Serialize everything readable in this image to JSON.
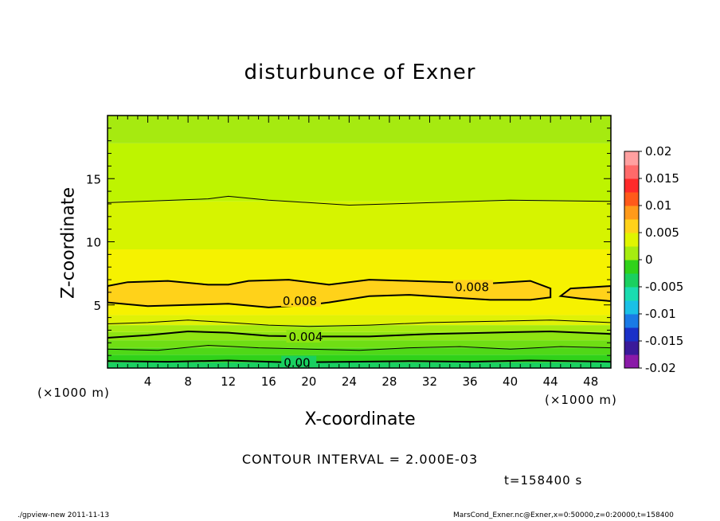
{
  "chart_data": {
    "type": "contour",
    "title": "disturbunce of Exner",
    "xlabel": "X-coordinate",
    "ylabel": "Z-coordinate",
    "x_unit_label": "(×1000 m)",
    "y_unit_label": "(×1000 m)",
    "xlim": [
      0,
      50
    ],
    "ylim": [
      0,
      20
    ],
    "x_ticks": [
      4,
      8,
      12,
      16,
      20,
      24,
      28,
      32,
      36,
      40,
      44,
      48
    ],
    "y_ticks": [
      5,
      10,
      15
    ],
    "contour_interval_text": "CONTOUR INTERVAL = 2.000E-03",
    "time_text": "t=158400 s",
    "colorbar": {
      "ticks": [
        "0.02",
        "0.015",
        "0.01",
        "0.005",
        "0",
        "-0.005",
        "-0.01",
        "-0.015",
        "-0.02"
      ],
      "range": [
        -0.02,
        0.02
      ],
      "colors": [
        "#8a1aa8",
        "#3a1a9a",
        "#1a30c8",
        "#1a7ae6",
        "#1ac0e6",
        "#1adcb0",
        "#1ad060",
        "#30d21a",
        "#a6ec10",
        "#e0f500",
        "#ffd21a",
        "#ff9a1a",
        "#ff5a1a",
        "#ff2a2a",
        "#ff6a6a",
        "#ffa0a0"
      ]
    },
    "bands": [
      {
        "z0": 0.0,
        "z1": 0.45,
        "value": 0.0005,
        "color": "#1ad060"
      },
      {
        "z0": 0.45,
        "z1": 1.05,
        "value": 0.0015,
        "color": "#30d21a"
      },
      {
        "z0": 1.05,
        "z1": 1.6,
        "value": 0.0025,
        "color": "#4fd817"
      },
      {
        "z0": 1.6,
        "z1": 2.2,
        "value": 0.0035,
        "color": "#6fde14"
      },
      {
        "z0": 2.2,
        "z1": 2.85,
        "value": 0.0045,
        "color": "#8fe412"
      },
      {
        "z0": 2.85,
        "z1": 3.4,
        "value": 0.0055,
        "color": "#a6ea10"
      },
      {
        "z0": 3.4,
        "z1": 4.2,
        "value": 0.0065,
        "color": "#e0f206"
      },
      {
        "z0": 4.2,
        "z1": 9.4,
        "value": 0.0075,
        "color": "#f6f200"
      },
      {
        "z0": 9.4,
        "z1": 13.2,
        "value": 0.0065,
        "color": "#d6f400"
      },
      {
        "z0": 13.2,
        "z1": 17.8,
        "value": 0.0055,
        "color": "#bef400"
      },
      {
        "z0": 17.8,
        "z1": 20.0,
        "value": 0.005,
        "color": "#a6ea10"
      }
    ],
    "contours": [
      {
        "level": "0.00",
        "label": "0.00",
        "points": [
          [
            0,
            0.55
          ],
          [
            6,
            0.5
          ],
          [
            12,
            0.6
          ],
          [
            18,
            0.45
          ],
          [
            24,
            0.5
          ],
          [
            30,
            0.55
          ],
          [
            36,
            0.5
          ],
          [
            42,
            0.6
          ],
          [
            50,
            0.5
          ]
        ],
        "bold": true,
        "label_x": 17.5
      },
      {
        "level": "0.004",
        "label": "0.004",
        "points": [
          [
            0,
            2.4
          ],
          [
            4,
            2.6
          ],
          [
            8,
            2.9
          ],
          [
            12,
            2.8
          ],
          [
            16,
            2.55
          ],
          [
            20,
            2.5
          ],
          [
            26,
            2.5
          ],
          [
            32,
            2.7
          ],
          [
            38,
            2.8
          ],
          [
            44,
            2.9
          ],
          [
            50,
            2.7
          ]
        ],
        "bold": true,
        "label_x": 18
      },
      {
        "level": "0.002",
        "label": "",
        "points": [
          [
            0,
            1.5
          ],
          [
            5,
            1.4
          ],
          [
            10,
            1.8
          ],
          [
            15,
            1.6
          ],
          [
            20,
            1.5
          ],
          [
            25,
            1.4
          ],
          [
            30,
            1.6
          ],
          [
            35,
            1.7
          ],
          [
            40,
            1.5
          ],
          [
            45,
            1.7
          ],
          [
            50,
            1.6
          ]
        ],
        "bold": false
      },
      {
        "level": "0.006",
        "label": "",
        "points": [
          [
            0,
            3.5
          ],
          [
            4,
            3.6
          ],
          [
            8,
            3.8
          ],
          [
            12,
            3.6
          ],
          [
            16,
            3.4
          ],
          [
            20,
            3.3
          ],
          [
            26,
            3.4
          ],
          [
            32,
            3.6
          ],
          [
            38,
            3.7
          ],
          [
            44,
            3.8
          ],
          [
            50,
            3.6
          ]
        ],
        "bold": false
      },
      {
        "level": "0.006",
        "label": "",
        "points": [
          [
            0,
            13.1
          ],
          [
            10,
            13.4
          ],
          [
            12,
            13.6
          ],
          [
            16,
            13.3
          ],
          [
            24,
            12.9
          ],
          [
            32,
            13.1
          ],
          [
            40,
            13.3
          ],
          [
            50,
            13.2
          ]
        ],
        "bold": false
      }
    ],
    "contour_008": {
      "label": "0.008",
      "label_positions": [
        [
          17.4,
          5.3
        ],
        [
          34.5,
          6.4
        ]
      ],
      "upper": [
        [
          0,
          6.5
        ],
        [
          2,
          6.8
        ],
        [
          6,
          6.9
        ],
        [
          10,
          6.6
        ],
        [
          12,
          6.6
        ],
        [
          14,
          6.9
        ],
        [
          18,
          7.0
        ],
        [
          22,
          6.6
        ],
        [
          26,
          7.0
        ],
        [
          30,
          6.9
        ],
        [
          34,
          6.8
        ],
        [
          38,
          6.7
        ],
        [
          42,
          6.9
        ],
        [
          44,
          6.3
        ]
      ],
      "lower": [
        [
          44,
          5.6
        ],
        [
          42,
          5.4
        ],
        [
          38,
          5.4
        ],
        [
          34,
          5.6
        ],
        [
          30,
          5.8
        ],
        [
          26,
          5.7
        ],
        [
          22,
          5.2
        ],
        [
          20,
          5.0
        ],
        [
          16,
          4.8
        ],
        [
          12,
          5.1
        ],
        [
          8,
          5.0
        ],
        [
          4,
          4.9
        ],
        [
          0,
          5.2
        ]
      ],
      "right_patch": [
        [
          50,
          6.5
        ],
        [
          48,
          6.4
        ],
        [
          46,
          6.3
        ],
        [
          45,
          5.7
        ],
        [
          47,
          5.5
        ],
        [
          50,
          5.3
        ]
      ]
    }
  },
  "footer": {
    "left": "./gpview-new   2011-11-13",
    "right": "MarsCond_Exner.nc@Exner,x=0:50000,z=0:20000,t=158400"
  }
}
